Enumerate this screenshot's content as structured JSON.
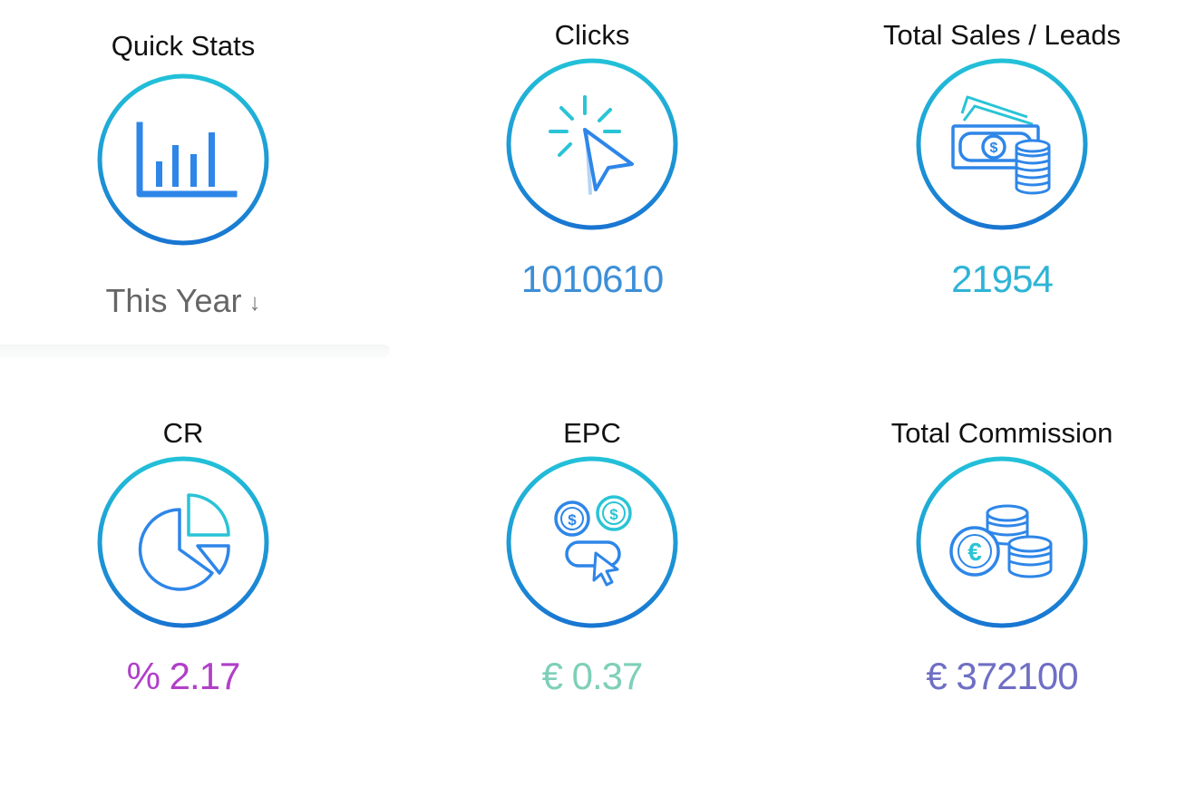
{
  "colors": {
    "ring_start": "#22c1d8",
    "ring_end": "#1976d2",
    "icon_blue": "#2e86e8",
    "icon_cyan": "#29c4d6",
    "clicks_value": "#3d8fd6",
    "sales_value": "#2fb4d6",
    "cr_value": "#b13fc8",
    "epc_value": "#7fcfb8",
    "commission_value": "#6f6fc4"
  },
  "stats": {
    "quick_stats": {
      "title": "Quick Stats",
      "icon": "bar-chart-icon",
      "filter_label": "This Year",
      "filter_arrow": "↓"
    },
    "clicks": {
      "title": "Clicks",
      "icon": "cursor-click-icon",
      "value": "1010610"
    },
    "total_sales": {
      "title": "Total Sales / Leads",
      "icon": "cash-coins-icon",
      "value": "21954"
    },
    "cr": {
      "title": "CR",
      "icon": "pie-chart-icon",
      "value": "% 2.17"
    },
    "epc": {
      "title": "EPC",
      "icon": "dollar-click-icon",
      "value": "€ 0.37"
    },
    "total_commission": {
      "title": "Total Commission",
      "icon": "euro-coins-icon",
      "value": "€ 372100"
    }
  }
}
